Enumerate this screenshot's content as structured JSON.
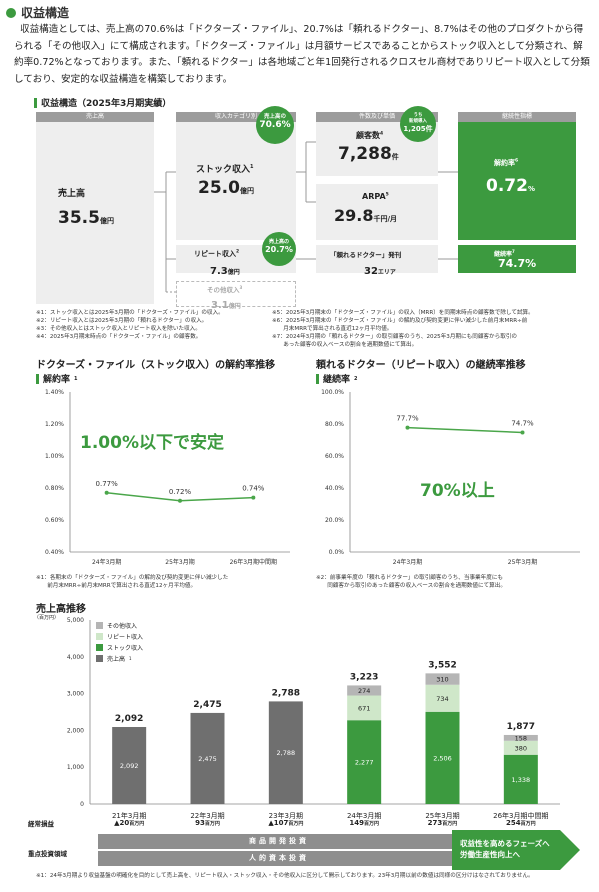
{
  "section_title": "収益構造",
  "intro": "収益構造としては、売上高の70.6%は「ドクターズ・ファイル」、20.7%は「頼れるドクター」、8.7%はその他のプロダクトから得られる「その他収入」にて構成されます。「ドクターズ・ファイル」は月額サービスであることからストック収入として分類され、解約率0.72%となっております。また、「頼れるドクター」は各地域ごと年1回発行されるクロスセル商材でありリピート収入として分類しており、安定的な収益構造を構築しております。",
  "structure": {
    "title": "収益構造（2025年3月期実績）",
    "headers": {
      "sales": "売上高",
      "category": "収入カテゴリ別",
      "kpi": "件数及び単価",
      "continuity": "継続性指標"
    },
    "sales": {
      "label": "売上高",
      "value": "35.5",
      "unit": "億円"
    },
    "stock": {
      "label": "ストック収入",
      "sup": "1",
      "value": "25.0",
      "unit": "億円"
    },
    "repeat": {
      "label": "リピート収入",
      "sup": "2",
      "value": "7.3",
      "unit": "億円"
    },
    "other": {
      "label": "その他収入",
      "sup": "3",
      "value": "3.1",
      "unit": "億円"
    },
    "share_stock": {
      "label": "売上高の",
      "value": "70.6%"
    },
    "share_repeat": {
      "label": "売上高の",
      "value": "20.7%"
    },
    "new_badge": {
      "line1": "うち",
      "line2": "新規導入",
      "value": "1,205件"
    },
    "customers": {
      "label": "顧客数",
      "sup": "4",
      "value": "7,288",
      "unit": "件"
    },
    "arpa": {
      "label": "ARPA",
      "sup": "5",
      "value": "29.8",
      "unit": "千円/月"
    },
    "issue": {
      "label": "「頼れるドクター」発刊",
      "value": "32",
      "unit": "エリア"
    },
    "churn": {
      "label": "解約率",
      "sup": "6",
      "value": "0.72",
      "unit": "%"
    },
    "retention": {
      "label": "継続率",
      "sup": "7",
      "value": "74.7%"
    }
  },
  "structure_notes_left": [
    "※1：ストック収入とは2025年3月期の「ドクターズ・ファイル」の収入。",
    "※2：リピート収入とは2025年3月期の「頼れるドクター」の収入。",
    "※3：その他収入とはストック収入とリピート収入を除いた収入。",
    "※4：2025年3月期末時点の「ドクターズ・ファイル」の顧客数。"
  ],
  "structure_notes_right": [
    "※5：2025年3月期末の「ドクターズ・ファイル」の収入（MRR）を同期末時点の顧客数で除して試算。",
    "※6：2025年3月期末の「ドクターズ・ファイル」の解約及び契約変更に伴い減少した前月末MRR÷前",
    "　　月末MRRで算出される直近12ヶ月平均値。",
    "※7：2024年3月期の「頼れるドクター」の取引顧客のうち、2025年3月期にも同顧客から取引の",
    "　　あった顧客の収入ベースの割合を過期数値にて算出。"
  ],
  "churn_chart": {
    "title": "ドクターズ・ファイル（ストック収入）の解約率推移",
    "subtitle": "解約率",
    "subtitle_sup": "1",
    "headline": "1.00%以下で安定",
    "note": [
      "※1：各期末の「ドクターズ・ファイル」の解約及び契約変更に伴い減少した",
      "　　前月末MRR÷前月末MRRで算出される直近12ヶ月平均値。"
    ]
  },
  "retention_chart": {
    "title": "頼れるドクター（リピート収入）の継続率推移",
    "subtitle": "継続率",
    "subtitle_sup": "2",
    "headline": "70%以上",
    "note": [
      "※2：前事業年度の「頼れるドクター」の取引顧客のうち、当事業年度にも",
      "　　同顧客から取引のあった顧客の収入ベースの割合を過期数値にて算出。"
    ]
  },
  "sales_chart": {
    "title": "売上高推移",
    "unit_label": "（百万円）",
    "legend": [
      "その他収入",
      "リピート収入",
      "ストック収入",
      "売上高"
    ],
    "legend_sup": "1",
    "profit_label": "経常損益",
    "invest_label": "重点投資領域",
    "invest_rows": [
      "商品開発投資",
      "人的資本投資"
    ],
    "arrow_text": [
      "収益性を高めるフェーズへ",
      "労働生産性向上へ"
    ],
    "profits": [
      {
        "mark": "▲",
        "value": "20",
        "unit": "百万円"
      },
      {
        "mark": "",
        "value": "93",
        "unit": "百万円"
      },
      {
        "mark": "▲",
        "value": "107",
        "unit": "百万円"
      },
      {
        "mark": "",
        "value": "149",
        "unit": "百万円"
      },
      {
        "mark": "",
        "value": "273",
        "unit": "百万円"
      },
      {
        "mark": "",
        "value": "254",
        "unit": "百万円"
      }
    ],
    "note": "※1：24年3月期より収益基盤の明確化を目的として売上高を、リピート収入・ストック収入・その他収入に区分して開示しております。23年3月期以前の数値は同様の区分けはなされておりません。"
  },
  "chart_data": [
    {
      "type": "line",
      "title": "解約率",
      "categories": [
        "24年3月期",
        "25年3月期",
        "26年3月期中間期"
      ],
      "series": [
        {
          "name": "解約率",
          "values": [
            0.77,
            0.72,
            0.74
          ]
        }
      ],
      "data_labels": [
        "0.77%",
        "0.72%",
        "0.74%"
      ],
      "y_ticks": [
        "1.40%",
        "1.20%",
        "1.00%",
        "0.80%",
        "0.60%",
        "0.40%"
      ],
      "ylim": [
        0.4,
        1.4
      ],
      "color": "#4aa64a"
    },
    {
      "type": "line",
      "title": "継続率",
      "categories": [
        "24年3月期",
        "25年3月期"
      ],
      "series": [
        {
          "name": "継続率",
          "values": [
            77.7,
            74.7
          ]
        }
      ],
      "data_labels": [
        "77.7%",
        "74.7%"
      ],
      "y_ticks": [
        "100.0%",
        "80.0%",
        "60.0%",
        "40.0%",
        "20.0%",
        "0.0%"
      ],
      "ylim": [
        0,
        100
      ],
      "color": "#4aa64a"
    },
    {
      "type": "bar",
      "title": "売上高推移",
      "categories": [
        "21年3月期",
        "22年3月期",
        "23年3月期",
        "24年3月期",
        "25年3月期",
        "26年3月期中間期"
      ],
      "y_ticks": [
        "5,000",
        "4,000",
        "3,000",
        "2,000",
        "1,000",
        "0"
      ],
      "ylim": [
        0,
        5000
      ],
      "totals": [
        2092,
        2475,
        2788,
        3223,
        3552,
        1877
      ],
      "series": [
        {
          "name": "売上高",
          "values": [
            2092,
            2475,
            2788,
            null,
            null,
            null
          ],
          "color": "#6f6f6f"
        },
        {
          "name": "ストック収入",
          "values": [
            null,
            null,
            null,
            2277,
            2506,
            1338
          ],
          "color": "#3c9a3f"
        },
        {
          "name": "リピート収入",
          "values": [
            null,
            null,
            null,
            671,
            734,
            380
          ],
          "color": "#cfe7c9"
        },
        {
          "name": "その他収入",
          "values": [
            null,
            null,
            null,
            274,
            310,
            158
          ],
          "color": "#b5b5b5"
        }
      ]
    }
  ]
}
